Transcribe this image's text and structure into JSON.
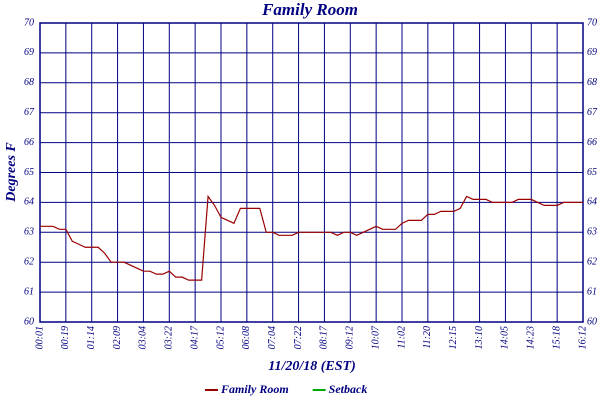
{
  "chart_data": {
    "type": "line",
    "title": "Family Room",
    "x_label": "11/20/18 (EST)",
    "y_label": "Degrees F",
    "x": [
      0,
      1,
      2,
      3,
      4,
      5,
      6,
      7,
      8,
      9,
      10,
      11,
      12,
      13,
      14,
      15,
      16,
      17,
      18,
      19,
      20,
      21,
      22,
      23,
      24,
      25,
      26,
      27,
      28,
      29,
      30,
      31,
      32,
      33,
      34,
      35,
      36,
      37,
      38,
      39,
      40,
      41,
      42,
      43,
      44,
      45,
      46,
      47,
      48,
      49,
      50,
      51,
      52,
      53,
      54,
      55,
      56,
      57,
      58,
      59,
      60,
      61,
      62,
      63,
      64,
      65,
      66,
      67,
      68,
      69,
      70,
      71,
      72,
      73,
      74,
      75,
      76,
      77,
      78,
      79,
      80,
      81,
      82,
      83,
      84
    ],
    "xlim": [
      0,
      84
    ],
    "xticks": [
      {
        "value": 0,
        "label": "00:01"
      },
      {
        "value": 4,
        "label": "00:19"
      },
      {
        "value": 8,
        "label": "01:14"
      },
      {
        "value": 12,
        "label": "02:09"
      },
      {
        "value": 16,
        "label": "03:04"
      },
      {
        "value": 20,
        "label": "03:22"
      },
      {
        "value": 24,
        "label": "04:17"
      },
      {
        "value": 28,
        "label": "05:12"
      },
      {
        "value": 32,
        "label": "06:08"
      },
      {
        "value": 36,
        "label": "07:04"
      },
      {
        "value": 40,
        "label": "07:22"
      },
      {
        "value": 44,
        "label": "08:17"
      },
      {
        "value": 48,
        "label": "09:12"
      },
      {
        "value": 52,
        "label": "10:07"
      },
      {
        "value": 56,
        "label": "11:02"
      },
      {
        "value": 60,
        "label": "11:20"
      },
      {
        "value": 64,
        "label": "12:15"
      },
      {
        "value": 68,
        "label": "13:10"
      },
      {
        "value": 72,
        "label": "14:05"
      },
      {
        "value": 76,
        "label": "14:23"
      },
      {
        "value": 80,
        "label": "15:18"
      },
      {
        "value": 84,
        "label": "16:12"
      }
    ],
    "ylim": [
      60,
      70
    ],
    "yticks": [
      60,
      61,
      62,
      63,
      64,
      65,
      66,
      67,
      68,
      69,
      70
    ],
    "grid": true,
    "series": [
      {
        "name": "Family Room",
        "color": "#990000",
        "values": [
          63.2,
          63.2,
          63.2,
          63.1,
          63.1,
          62.7,
          62.6,
          62.5,
          62.5,
          62.5,
          62.3,
          62.0,
          62.0,
          62.0,
          61.9,
          61.8,
          61.7,
          61.7,
          61.6,
          61.6,
          61.7,
          61.5,
          61.5,
          61.4,
          61.4,
          61.4,
          64.2,
          63.9,
          63.5,
          63.4,
          63.3,
          63.8,
          63.8,
          63.8,
          63.8,
          63.0,
          63.0,
          62.9,
          62.9,
          62.9,
          63.0,
          63.0,
          63.0,
          63.0,
          63.0,
          63.0,
          62.9,
          63.0,
          63.0,
          62.9,
          63.0,
          63.1,
          63.2,
          63.1,
          63.1,
          63.1,
          63.3,
          63.4,
          63.4,
          63.4,
          63.6,
          63.6,
          63.7,
          63.7,
          63.7,
          63.8,
          64.2,
          64.1,
          64.1,
          64.1,
          64.0,
          64.0,
          64.0,
          64.0,
          64.1,
          64.1,
          64.1,
          64.0,
          63.9,
          63.9,
          63.9,
          64.0,
          64.0,
          64.0,
          64.0
        ]
      },
      {
        "name": "Setback",
        "color": "#00aa00",
        "values": [
          null,
          null,
          null,
          null,
          null,
          null,
          null,
          null,
          null,
          null,
          null,
          null,
          null,
          null,
          null,
          null,
          null,
          null,
          null,
          null,
          null,
          null,
          null,
          null,
          null,
          null,
          null,
          null,
          null,
          null,
          null,
          null,
          null,
          null,
          null,
          null,
          null,
          null,
          null,
          null,
          null,
          null,
          null,
          null,
          null,
          null,
          null,
          null,
          null,
          null,
          null,
          null,
          null,
          null,
          null,
          null,
          null,
          null,
          null,
          null,
          null,
          null,
          null,
          null,
          null,
          null,
          null,
          null,
          null,
          null,
          null,
          null,
          null,
          null,
          null,
          null,
          null,
          null,
          null,
          null,
          null,
          null,
          null,
          null,
          null
        ]
      }
    ]
  }
}
